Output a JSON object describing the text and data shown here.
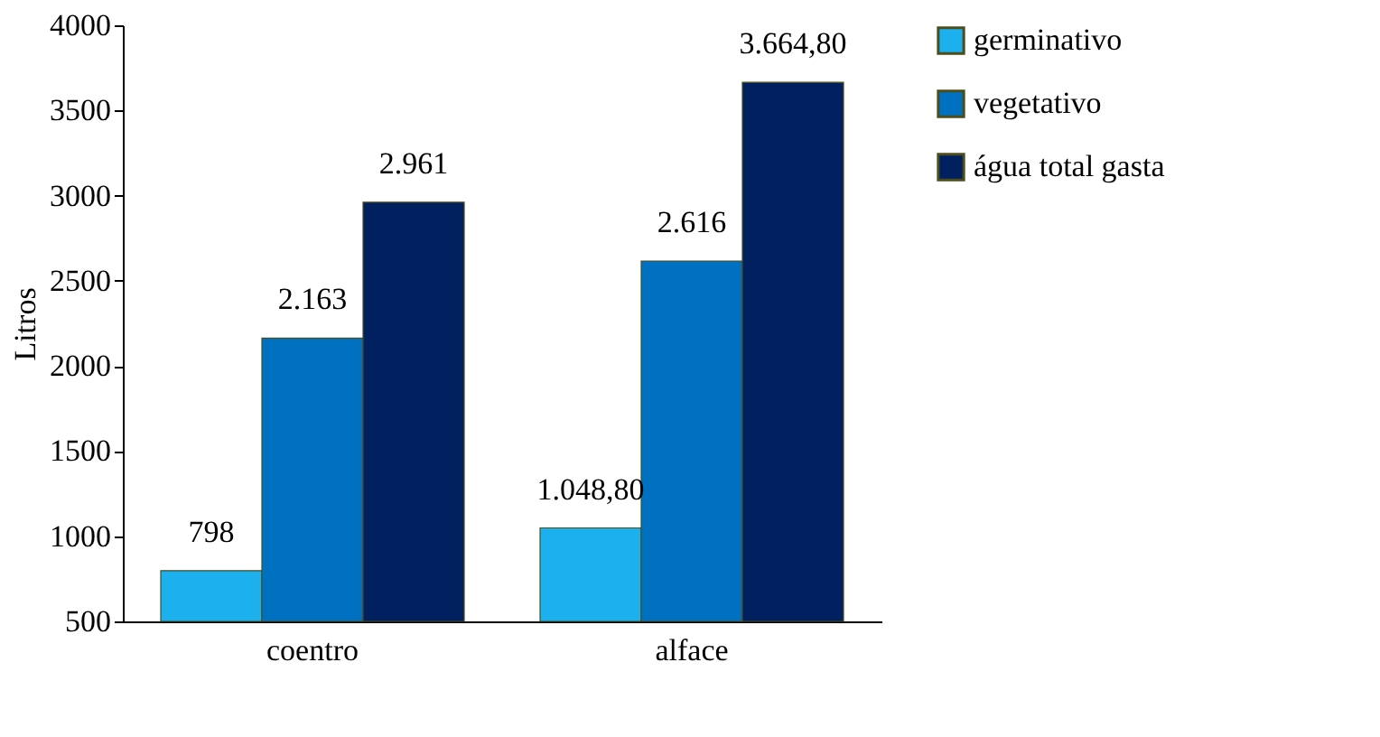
{
  "chart_data": {
    "type": "bar",
    "ylabel": "Litros",
    "categories": [
      "coentro",
      "alface"
    ],
    "series": [
      {
        "name": "germinativo",
        "color": "#1cb0ee",
        "values": [
          798,
          1048.8
        ],
        "value_labels": [
          "798",
          "1.048,80"
        ]
      },
      {
        "name": "vegetativo",
        "color": "#0070c0",
        "values": [
          2163,
          2616
        ],
        "value_labels": [
          "2.163",
          "2.616"
        ]
      },
      {
        "name": "água  total gasta",
        "color": "#002060",
        "values": [
          2961,
          3664.8
        ],
        "value_labels": [
          "2.961",
          "3.664,80"
        ]
      }
    ],
    "ylim": [
      500,
      4000
    ],
    "yticks": [
      500,
      1000,
      1500,
      2000,
      2500,
      3000,
      3500,
      4000
    ],
    "grid": false,
    "legend": "right"
  }
}
